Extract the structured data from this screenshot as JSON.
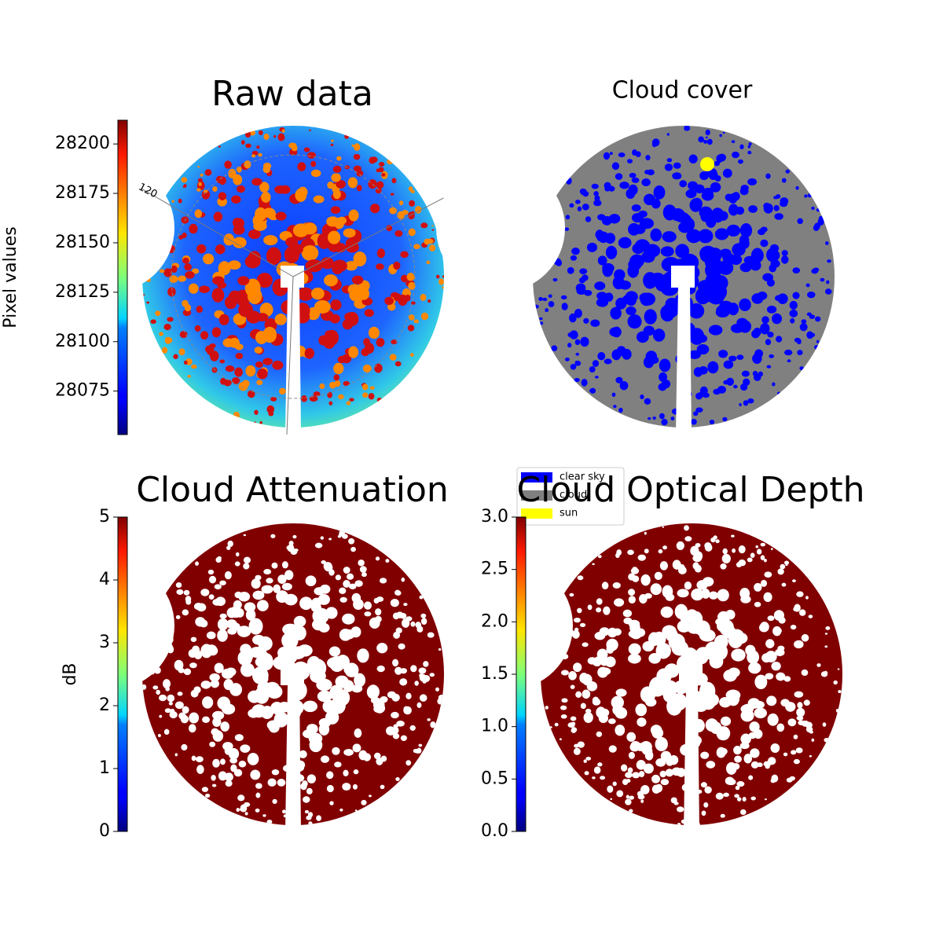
{
  "chart_data": [
    {
      "type": "image",
      "title": "Raw data",
      "colormap": "jet",
      "colorbar_label": "Pixel values",
      "ylim": [
        28053,
        28212
      ],
      "yticks": [
        28075,
        28100,
        28125,
        28150,
        28175,
        28200
      ],
      "annotations": [
        "120"
      ]
    },
    {
      "type": "classes",
      "title": "Cloud cover",
      "classes": [
        {
          "name": "clear sky",
          "color": "#0000ff"
        },
        {
          "name": "cloud",
          "color": "#808080"
        },
        {
          "name": "sun",
          "color": "#ffff00"
        }
      ]
    },
    {
      "type": "image",
      "title": "Cloud Attenuation",
      "colormap": "jet",
      "colorbar_label": "dB",
      "ylim": [
        0,
        5
      ],
      "yticks": [
        0,
        1,
        2,
        3,
        4,
        5
      ]
    },
    {
      "type": "image",
      "title": "Cloud Optical Depth",
      "colormap": "jet",
      "ylim": [
        0,
        3
      ],
      "yticks": [
        {
          "value": 0,
          "label": "0.0"
        },
        {
          "value": 0.5,
          "label": "0.5"
        },
        {
          "value": 1,
          "label": "1.0"
        },
        {
          "value": 1.5,
          "label": "1.5"
        },
        {
          "value": 2,
          "label": "2.0"
        },
        {
          "value": 2.5,
          "label": "2.5"
        },
        {
          "value": 3,
          "label": "3.0"
        }
      ]
    }
  ]
}
